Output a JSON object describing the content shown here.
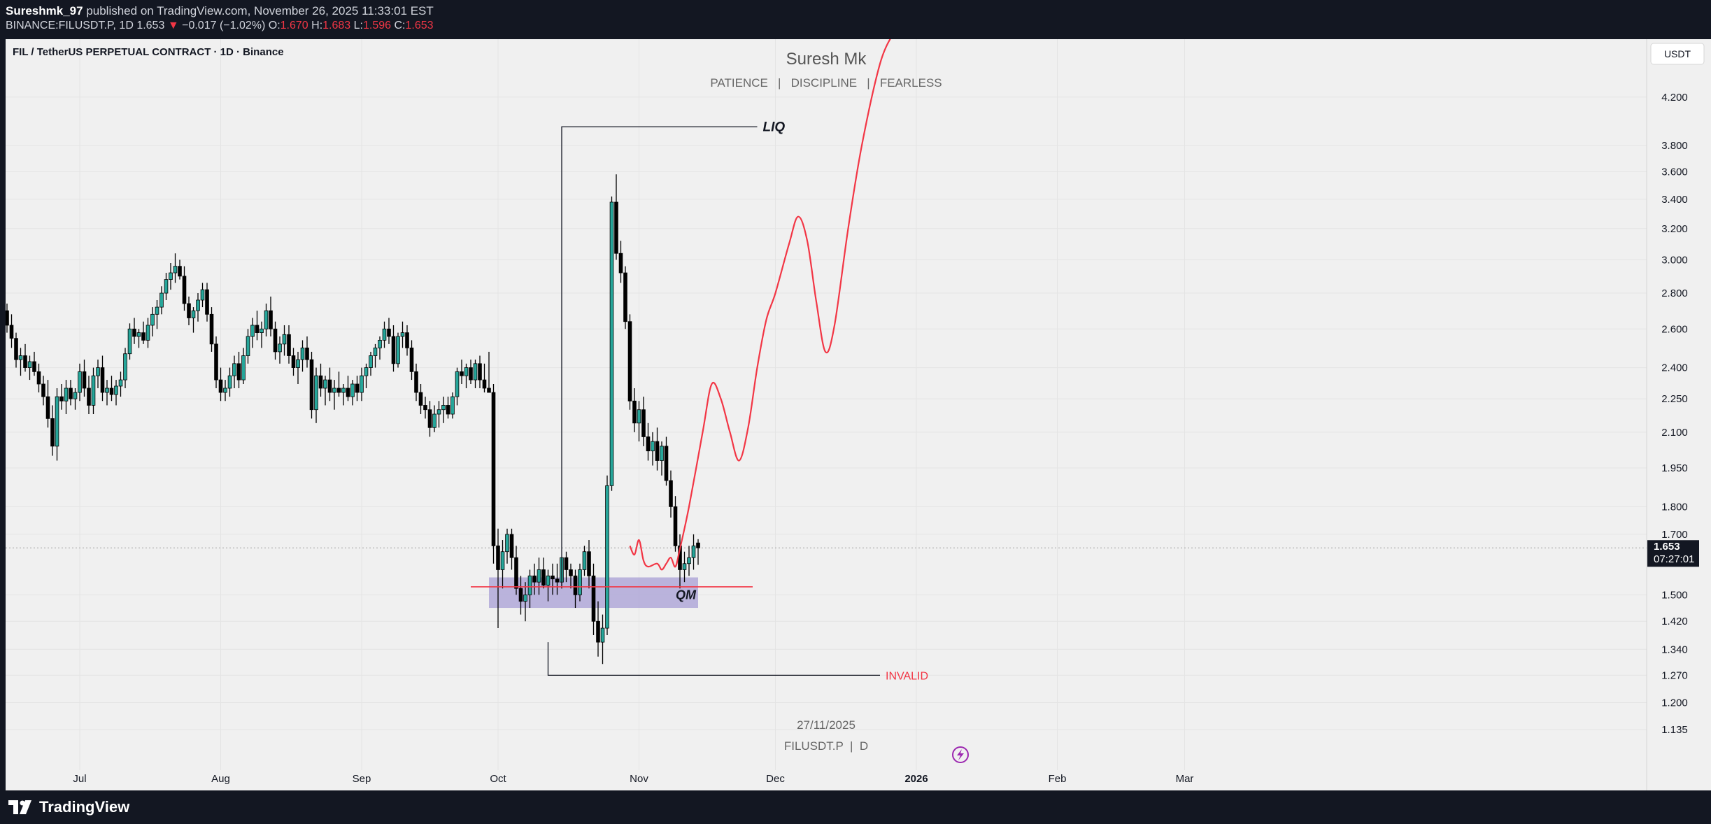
{
  "header": {
    "publisher": "Sureshmk_97",
    "published_text": "published on TradingView.com, November 26, 2025 11:33:01 EST",
    "symbol_line_prefix": "BINANCE:FILUSDT.P, 1D 1.653",
    "change_text": "−0.017 (−1.02%)",
    "o_label": "O:",
    "o_value": "1.670",
    "h_label": "H:",
    "h_value": "1.683",
    "l_label": "L:",
    "l_value": "1.596",
    "c_label": "C:",
    "c_value": "1.653"
  },
  "chart": {
    "symbol_title": "FIL / TetherUS PERPETUAL CONTRACT · 1D · Binance",
    "watermark_title": "Suresh Mk",
    "watermark_subtitle": "PATIENCE   |   DISCIPLINE   |   FEARLESS",
    "currency_button": "USDT",
    "date_watermark": "27/11/2025",
    "symbol_watermark": "FILUSDT.P  |  D",
    "last_price": "1.653",
    "countdown": "07:27:01",
    "annotation_liq": "LIQ",
    "annotation_qm": "QM",
    "annotation_invalid": "INVALID",
    "colors": {
      "up": "#26a69a",
      "down": "#000000",
      "projection": "#f23645",
      "zone": "#b0a8d8",
      "background": "#f0f0f0"
    }
  },
  "chart_data": {
    "type": "candlestick",
    "y_scale": "log",
    "ylim": [
      1.09,
      4.6
    ],
    "y_ticks": [
      4.2,
      3.8,
      3.6,
      3.4,
      3.2,
      3.0,
      2.8,
      2.6,
      2.4,
      2.25,
      2.1,
      1.95,
      1.8,
      1.7,
      1.5,
      1.42,
      1.34,
      1.27,
      1.2,
      1.135
    ],
    "y_tick_labels": [
      "4.200",
      "3.800",
      "3.600",
      "3.400",
      "3.200",
      "3.000",
      "2.800",
      "2.600",
      "2.400",
      "2.250",
      "2.100",
      "1.950",
      "1.800",
      "1.700",
      "1.500",
      "1.420",
      "1.340",
      "1.270",
      "1.200",
      "1.135"
    ],
    "x_ticks": [
      {
        "label": "Jul",
        "day": 16
      },
      {
        "label": "Aug",
        "day": 47
      },
      {
        "label": "Sep",
        "day": 78
      },
      {
        "label": "Oct",
        "day": 108
      },
      {
        "label": "Nov",
        "day": 139
      },
      {
        "label": "Dec",
        "day": 169
      },
      {
        "label": "2026",
        "day": 200
      },
      {
        "label": "Feb",
        "day": 231
      },
      {
        "label": "Mar",
        "day": 259
      }
    ],
    "first_date": "2025-06-15",
    "candles": [
      [
        2.7,
        2.74,
        2.58,
        2.62
      ],
      [
        2.62,
        2.68,
        2.5,
        2.55
      ],
      [
        2.55,
        2.58,
        2.4,
        2.44
      ],
      [
        2.44,
        2.5,
        2.36,
        2.46
      ],
      [
        2.46,
        2.52,
        2.38,
        2.4
      ],
      [
        2.4,
        2.46,
        2.34,
        2.43
      ],
      [
        2.43,
        2.48,
        2.36,
        2.38
      ],
      [
        2.38,
        2.42,
        2.28,
        2.32
      ],
      [
        2.32,
        2.36,
        2.22,
        2.26
      ],
      [
        2.26,
        2.34,
        2.12,
        2.16
      ],
      [
        2.16,
        2.22,
        2.0,
        2.04
      ],
      [
        2.04,
        2.3,
        1.98,
        2.26
      ],
      [
        2.26,
        2.32,
        2.2,
        2.24
      ],
      [
        2.24,
        2.34,
        2.18,
        2.3
      ],
      [
        2.3,
        2.34,
        2.22,
        2.25
      ],
      [
        2.25,
        2.3,
        2.2,
        2.28
      ],
      [
        2.28,
        2.42,
        2.24,
        2.38
      ],
      [
        2.38,
        2.44,
        2.26,
        2.3
      ],
      [
        2.3,
        2.36,
        2.18,
        2.22
      ],
      [
        2.22,
        2.4,
        2.18,
        2.36
      ],
      [
        2.36,
        2.44,
        2.3,
        2.4
      ],
      [
        2.4,
        2.46,
        2.24,
        2.28
      ],
      [
        2.28,
        2.34,
        2.22,
        2.3
      ],
      [
        2.3,
        2.36,
        2.24,
        2.27
      ],
      [
        2.27,
        2.34,
        2.22,
        2.31
      ],
      [
        2.31,
        2.38,
        2.26,
        2.34
      ],
      [
        2.34,
        2.5,
        2.3,
        2.47
      ],
      [
        2.47,
        2.63,
        2.44,
        2.6
      ],
      [
        2.6,
        2.66,
        2.52,
        2.56
      ],
      [
        2.56,
        2.6,
        2.5,
        2.58
      ],
      [
        2.58,
        2.64,
        2.52,
        2.54
      ],
      [
        2.54,
        2.66,
        2.5,
        2.62
      ],
      [
        2.62,
        2.72,
        2.56,
        2.68
      ],
      [
        2.68,
        2.76,
        2.6,
        2.72
      ],
      [
        2.72,
        2.84,
        2.68,
        2.8
      ],
      [
        2.8,
        2.92,
        2.76,
        2.88
      ],
      [
        2.88,
        2.98,
        2.82,
        2.92
      ],
      [
        2.92,
        3.04,
        2.86,
        2.96
      ],
      [
        2.96,
        3.0,
        2.88,
        2.9
      ],
      [
        2.9,
        2.96,
        2.7,
        2.74
      ],
      [
        2.74,
        2.78,
        2.62,
        2.66
      ],
      [
        2.66,
        2.72,
        2.58,
        2.7
      ],
      [
        2.7,
        2.8,
        2.64,
        2.76
      ],
      [
        2.76,
        2.86,
        2.72,
        2.82
      ],
      [
        2.82,
        2.86,
        2.64,
        2.68
      ],
      [
        2.68,
        2.72,
        2.48,
        2.52
      ],
      [
        2.52,
        2.56,
        2.3,
        2.34
      ],
      [
        2.34,
        2.4,
        2.24,
        2.28
      ],
      [
        2.28,
        2.34,
        2.24,
        2.3
      ],
      [
        2.3,
        2.4,
        2.26,
        2.36
      ],
      [
        2.36,
        2.46,
        2.3,
        2.42
      ],
      [
        2.42,
        2.48,
        2.3,
        2.34
      ],
      [
        2.34,
        2.5,
        2.32,
        2.46
      ],
      [
        2.46,
        2.6,
        2.42,
        2.56
      ],
      [
        2.56,
        2.66,
        2.5,
        2.62
      ],
      [
        2.62,
        2.7,
        2.54,
        2.58
      ],
      [
        2.58,
        2.64,
        2.5,
        2.6
      ],
      [
        2.6,
        2.74,
        2.56,
        2.7
      ],
      [
        2.7,
        2.78,
        2.56,
        2.6
      ],
      [
        2.6,
        2.64,
        2.44,
        2.48
      ],
      [
        2.48,
        2.56,
        2.42,
        2.52
      ],
      [
        2.52,
        2.62,
        2.46,
        2.57
      ],
      [
        2.57,
        2.62,
        2.42,
        2.46
      ],
      [
        2.46,
        2.5,
        2.36,
        2.4
      ],
      [
        2.4,
        2.48,
        2.32,
        2.44
      ],
      [
        2.44,
        2.54,
        2.38,
        2.5
      ],
      [
        2.5,
        2.56,
        2.4,
        2.44
      ],
      [
        2.44,
        2.48,
        2.16,
        2.2
      ],
      [
        2.2,
        2.4,
        2.14,
        2.36
      ],
      [
        2.36,
        2.42,
        2.26,
        2.3
      ],
      [
        2.3,
        2.36,
        2.22,
        2.34
      ],
      [
        2.34,
        2.4,
        2.24,
        2.28
      ],
      [
        2.28,
        2.34,
        2.2,
        2.3
      ],
      [
        2.3,
        2.38,
        2.26,
        2.28
      ],
      [
        2.28,
        2.32,
        2.22,
        2.3
      ],
      [
        2.3,
        2.36,
        2.24,
        2.26
      ],
      [
        2.26,
        2.34,
        2.22,
        2.32
      ],
      [
        2.32,
        2.36,
        2.24,
        2.28
      ],
      [
        2.28,
        2.4,
        2.24,
        2.36
      ],
      [
        2.36,
        2.42,
        2.3,
        2.4
      ],
      [
        2.4,
        2.48,
        2.36,
        2.46
      ],
      [
        2.46,
        2.52,
        2.4,
        2.5
      ],
      [
        2.5,
        2.56,
        2.44,
        2.54
      ],
      [
        2.54,
        2.64,
        2.5,
        2.6
      ],
      [
        2.6,
        2.66,
        2.52,
        2.56
      ],
      [
        2.56,
        2.62,
        2.38,
        2.42
      ],
      [
        2.42,
        2.58,
        2.4,
        2.56
      ],
      [
        2.56,
        2.64,
        2.5,
        2.58
      ],
      [
        2.58,
        2.62,
        2.46,
        2.5
      ],
      [
        2.5,
        2.54,
        2.34,
        2.38
      ],
      [
        2.38,
        2.42,
        2.24,
        2.28
      ],
      [
        2.28,
        2.32,
        2.18,
        2.22
      ],
      [
        2.22,
        2.26,
        2.16,
        2.2
      ],
      [
        2.2,
        2.24,
        2.08,
        2.12
      ],
      [
        2.12,
        2.22,
        2.1,
        2.18
      ],
      [
        2.18,
        2.24,
        2.12,
        2.2
      ],
      [
        2.2,
        2.26,
        2.14,
        2.22
      ],
      [
        2.22,
        2.26,
        2.16,
        2.18
      ],
      [
        2.18,
        2.28,
        2.16,
        2.26
      ],
      [
        2.26,
        2.4,
        2.22,
        2.38
      ],
      [
        2.38,
        2.44,
        2.32,
        2.36
      ],
      [
        2.36,
        2.42,
        2.3,
        2.4
      ],
      [
        2.4,
        2.44,
        2.32,
        2.34
      ],
      [
        2.34,
        2.44,
        2.3,
        2.42
      ],
      [
        2.42,
        2.46,
        2.3,
        2.34
      ],
      [
        2.34,
        2.42,
        2.28,
        2.3
      ],
      [
        2.3,
        2.48,
        2.28,
        2.28
      ],
      [
        2.28,
        2.32,
        1.6,
        1.66
      ],
      [
        1.66,
        1.72,
        1.4,
        1.58
      ],
      [
        1.58,
        1.68,
        1.52,
        1.64
      ],
      [
        1.64,
        1.72,
        1.6,
        1.7
      ],
      [
        1.7,
        1.72,
        1.58,
        1.62
      ],
      [
        1.62,
        1.66,
        1.5,
        1.52
      ],
      [
        1.52,
        1.56,
        1.44,
        1.48
      ],
      [
        1.48,
        1.54,
        1.42,
        1.5
      ],
      [
        1.5,
        1.58,
        1.46,
        1.56
      ],
      [
        1.56,
        1.6,
        1.5,
        1.54
      ],
      [
        1.54,
        1.62,
        1.5,
        1.58
      ],
      [
        1.58,
        1.62,
        1.52,
        1.53
      ],
      [
        1.53,
        1.58,
        1.48,
        1.56
      ],
      [
        1.56,
        1.6,
        1.5,
        1.55
      ],
      [
        1.55,
        1.6,
        1.5,
        1.54
      ],
      [
        1.54,
        1.62,
        1.52,
        1.62
      ],
      [
        1.62,
        1.64,
        1.54,
        1.58
      ],
      [
        1.58,
        1.6,
        1.52,
        1.56
      ],
      [
        1.56,
        1.58,
        1.46,
        1.5
      ],
      [
        1.5,
        1.6,
        1.48,
        1.58
      ],
      [
        1.58,
        1.66,
        1.56,
        1.64
      ],
      [
        1.64,
        1.68,
        1.52,
        1.56
      ],
      [
        1.56,
        1.6,
        1.38,
        1.42
      ],
      [
        1.42,
        1.48,
        1.32,
        1.36
      ],
      [
        1.36,
        1.44,
        1.3,
        1.4
      ],
      [
        1.4,
        1.92,
        1.38,
        1.88
      ],
      [
        1.88,
        3.42,
        1.86,
        3.38
      ],
      [
        3.38,
        3.58,
        3.0,
        3.04
      ],
      [
        3.04,
        3.12,
        2.86,
        2.92
      ],
      [
        2.92,
        2.96,
        2.6,
        2.64
      ],
      [
        2.64,
        2.68,
        2.2,
        2.24
      ],
      [
        2.24,
        2.3,
        2.1,
        2.14
      ],
      [
        2.14,
        2.24,
        2.06,
        2.2
      ],
      [
        2.2,
        2.26,
        2.04,
        2.08
      ],
      [
        2.08,
        2.14,
        1.98,
        2.02
      ],
      [
        2.02,
        2.1,
        1.96,
        2.06
      ],
      [
        2.06,
        2.12,
        1.94,
        1.98
      ],
      [
        1.98,
        2.06,
        1.92,
        2.04
      ],
      [
        2.04,
        2.08,
        1.88,
        1.9
      ],
      [
        1.9,
        1.94,
        1.76,
        1.8
      ],
      [
        1.8,
        1.84,
        1.64,
        1.66
      ],
      [
        1.66,
        1.7,
        1.52,
        1.58
      ],
      [
        1.58,
        1.64,
        1.54,
        1.6
      ],
      [
        1.6,
        1.66,
        1.56,
        1.62
      ],
      [
        1.62,
        1.7,
        1.58,
        1.66
      ],
      [
        1.67,
        1.683,
        1.596,
        1.653
      ]
    ],
    "projection_path": [
      [
        137,
        1.66
      ],
      [
        138,
        1.63
      ],
      [
        139,
        1.68
      ],
      [
        140,
        1.61
      ],
      [
        141,
        1.59
      ],
      [
        143,
        1.6
      ],
      [
        144,
        1.58
      ],
      [
        145,
        1.6
      ],
      [
        146,
        1.62
      ],
      [
        147,
        1.59
      ],
      [
        148,
        1.65
      ],
      [
        150,
        1.8
      ],
      [
        153,
        2.1
      ],
      [
        155,
        2.32
      ],
      [
        157,
        2.25
      ],
      [
        159,
        2.1
      ],
      [
        161,
        1.98
      ],
      [
        163,
        2.12
      ],
      [
        165,
        2.4
      ],
      [
        167,
        2.65
      ],
      [
        169,
        2.8
      ],
      [
        172,
        3.1
      ],
      [
        174,
        3.28
      ],
      [
        176,
        3.12
      ],
      [
        178,
        2.75
      ],
      [
        180,
        2.48
      ],
      [
        182,
        2.62
      ],
      [
        185,
        3.2
      ],
      [
        188,
        3.8
      ],
      [
        192,
        4.5
      ],
      [
        195,
        4.8
      ]
    ],
    "annotations": {
      "liq_line": {
        "from_day": 122,
        "to_day": 165,
        "price": 3.95
      },
      "invalid_line": {
        "from_day": 119,
        "to_day": 192,
        "price": 1.27
      },
      "qm_zone": {
        "from_day": 106,
        "to_day": 152,
        "low": 1.46,
        "high": 1.555
      },
      "qm_line": {
        "from_day": 102,
        "to_day": 164,
        "price": 1.525
      },
      "last_price": 1.653
    }
  }
}
